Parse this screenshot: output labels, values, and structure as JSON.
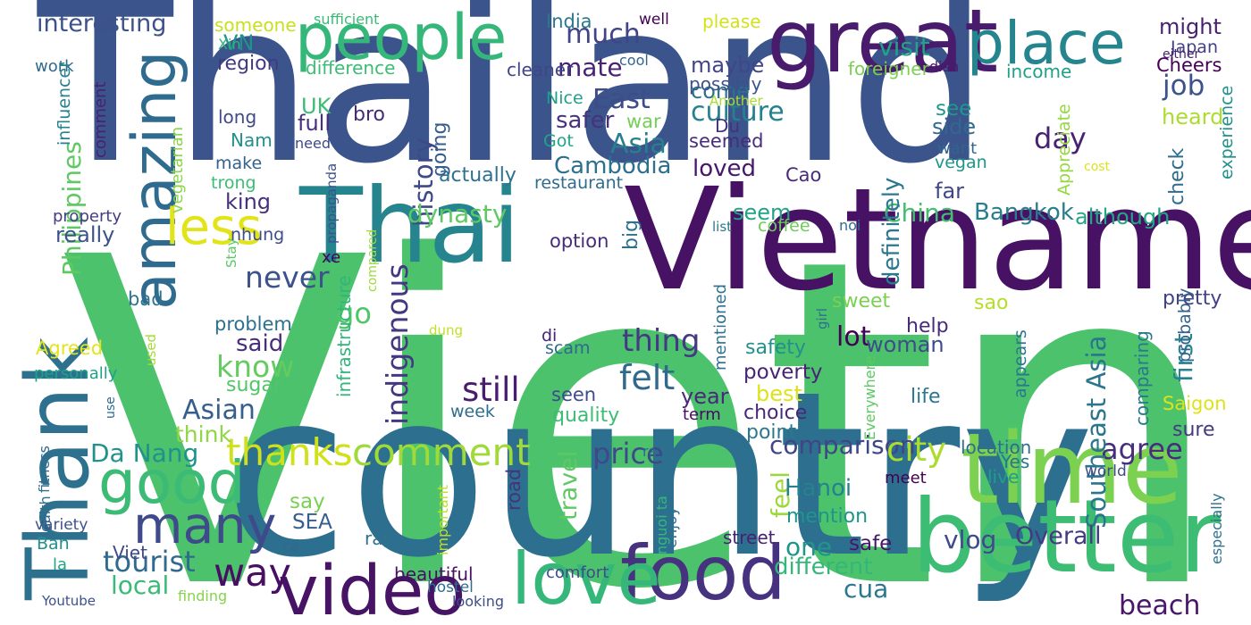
{
  "words": [
    {
      "text": "Vietnam",
      "color": "#4cc26c",
      "rotated": false
    },
    {
      "text": "Thailand",
      "color": "#3b548c",
      "rotated": false
    },
    {
      "text": "country",
      "color": "#2d6f8e",
      "rotated": false
    },
    {
      "text": "Vietnamese",
      "color": "#471164",
      "rotated": false
    },
    {
      "text": "Thai",
      "color": "#25848e",
      "rotated": false
    },
    {
      "text": "great",
      "color": "#481b6d",
      "rotated": false
    },
    {
      "text": "time",
      "color": "#7cd250",
      "rotated": false
    },
    {
      "text": "better",
      "color": "#3dbc74",
      "rotated": false
    },
    {
      "text": "Thank",
      "color": "#2d718e",
      "rotated": true
    },
    {
      "text": "food",
      "color": "#46327e",
      "rotated": false
    },
    {
      "text": "love",
      "color": "#35b779",
      "rotated": false
    },
    {
      "text": "video",
      "color": "#471365",
      "rotated": false
    },
    {
      "text": "people",
      "color": "#35b779",
      "rotated": false
    },
    {
      "text": "place",
      "color": "#25858e",
      "rotated": false
    },
    {
      "text": "amazing",
      "color": "#2f6b8e",
      "rotated": true
    },
    {
      "text": "good",
      "color": "#3bbb75",
      "rotated": false
    },
    {
      "text": "many",
      "color": "#3e4a89",
      "rotated": false
    },
    {
      "text": "less",
      "color": "#e1e419",
      "rotated": false
    },
    {
      "text": "thanks",
      "color": "#d0e11c",
      "rotated": false
    },
    {
      "text": "comment",
      "color": "#a0da39",
      "rotated": false
    },
    {
      "text": "way",
      "color": "#470e61",
      "rotated": false
    },
    {
      "text": "tourist",
      "color": "#306a8e",
      "rotated": false
    },
    {
      "text": "local",
      "color": "#3aba76",
      "rotated": false
    },
    {
      "text": "job",
      "color": "#3b528b",
      "rotated": false
    },
    {
      "text": "culture",
      "color": "#26818e",
      "rotated": false
    },
    {
      "text": "history",
      "color": "#3e4989",
      "rotated": true
    },
    {
      "text": "Asia",
      "color": "#27808e",
      "rotated": false
    },
    {
      "text": "much",
      "color": "#414487",
      "rotated": false
    },
    {
      "text": "East",
      "color": "#3e4c8a",
      "rotated": false
    },
    {
      "text": "Cambodia",
      "color": "#2d708e",
      "rotated": false
    },
    {
      "text": "safer",
      "color": "#46337f",
      "rotated": false
    },
    {
      "text": "mate",
      "color": "#482374",
      "rotated": false
    },
    {
      "text": "visit",
      "color": "#20a386",
      "rotated": false
    },
    {
      "text": "day",
      "color": "#482173",
      "rotated": false
    },
    {
      "text": "dynasty",
      "color": "#5ec962",
      "rotated": false
    },
    {
      "text": "China",
      "color": "#44bf70",
      "rotated": false
    },
    {
      "text": "Bangkok",
      "color": "#287d8e",
      "rotated": false
    },
    {
      "text": "never",
      "color": "#3b528b",
      "rotated": false
    },
    {
      "text": "go",
      "color": "#52c569",
      "rotated": false
    },
    {
      "text": "said",
      "color": "#472d7b",
      "rotated": false
    },
    {
      "text": "know",
      "color": "#63cb5f",
      "rotated": false
    },
    {
      "text": "indigenous",
      "color": "#453781",
      "rotated": true
    },
    {
      "text": "still",
      "color": "#481c6e",
      "rotated": false
    },
    {
      "text": "thing",
      "color": "#443983",
      "rotated": false
    },
    {
      "text": "felt",
      "color": "#31688e",
      "rotated": false
    },
    {
      "text": "Asian",
      "color": "#355f8d",
      "rotated": false
    },
    {
      "text": "Da Nang",
      "color": "#20928c",
      "rotated": false
    },
    {
      "text": "price",
      "color": "#3f4889",
      "rotated": false
    },
    {
      "text": "travel",
      "color": "#5ec962",
      "rotated": true
    },
    {
      "text": "feel",
      "color": "#9bd93c",
      "rotated": true
    },
    {
      "text": "comparison",
      "color": "#404588",
      "rotated": false
    },
    {
      "text": "city",
      "color": "#addc30",
      "rotated": false
    },
    {
      "text": "agree",
      "color": "#472e7c",
      "rotated": false
    },
    {
      "text": "Southeast Asia",
      "color": "#2a768e",
      "rotated": true
    },
    {
      "text": "one",
      "color": "#1f968b",
      "rotated": false
    },
    {
      "text": "different",
      "color": "#35b779",
      "rotated": false
    },
    {
      "text": "cua",
      "color": "#2a788e",
      "rotated": false
    },
    {
      "text": "beach",
      "color": "#481769",
      "rotated": false
    },
    {
      "text": "vlog",
      "color": "#3e4a89",
      "rotated": false
    },
    {
      "text": "Overall",
      "color": "#443a83",
      "rotated": false
    },
    {
      "text": "first",
      "color": "#26828e",
      "rotated": true
    },
    {
      "text": "lot",
      "color": "#440154",
      "rotated": false
    },
    {
      "text": "interesting",
      "color": "#3b528b",
      "rotated": false
    },
    {
      "text": "Philippines",
      "color": "#5ec962",
      "rotated": true
    },
    {
      "text": "really",
      "color": "#3b528b",
      "rotated": false
    },
    {
      "text": "king",
      "color": "#46307e",
      "rotated": false
    },
    {
      "text": "see",
      "color": "#1f988b",
      "rotated": false
    },
    {
      "text": "side",
      "color": "#31688e",
      "rotated": false
    },
    {
      "text": "far",
      "color": "#3f4788",
      "rotated": false
    },
    {
      "text": "definitely",
      "color": "#2a778e",
      "rotated": true
    },
    {
      "text": "seem",
      "color": "#20a386",
      "rotated": false
    },
    {
      "text": "loved",
      "color": "#48186a",
      "rotated": false
    },
    {
      "text": "come",
      "color": "#2c718e",
      "rotated": false
    },
    {
      "text": "maybe",
      "color": "#404688",
      "rotated": false
    },
    {
      "text": "might",
      "color": "#482173",
      "rotated": false
    },
    {
      "text": "Japan",
      "color": "#424186",
      "rotated": false
    },
    {
      "text": "Cheers",
      "color": "#440154",
      "rotated": false
    },
    {
      "text": "heard",
      "color": "#addc30",
      "rotated": false
    },
    {
      "text": "check",
      "color": "#2e6d8e",
      "rotated": true
    },
    {
      "text": "although",
      "color": "#22a785",
      "rotated": false
    },
    {
      "text": "woman",
      "color": "#3e4c8a",
      "rotated": false
    },
    {
      "text": "year",
      "color": "#482979",
      "rotated": false
    },
    {
      "text": "best",
      "color": "#dde318",
      "rotated": false
    },
    {
      "text": "safety",
      "color": "#21918c",
      "rotated": false
    },
    {
      "text": "poverty",
      "color": "#482475",
      "rotated": false
    },
    {
      "text": "choice",
      "color": "#482878",
      "rotated": false
    },
    {
      "text": "point",
      "color": "#2a788e",
      "rotated": false
    },
    {
      "text": "life",
      "color": "#2a768e",
      "rotated": false
    },
    {
      "text": "help",
      "color": "#472a7a",
      "rotated": false
    },
    {
      "text": "sweet",
      "color": "#7ad151",
      "rotated": false
    },
    {
      "text": "pretty",
      "color": "#424086",
      "rotated": false
    },
    {
      "text": "sao",
      "color": "#b5de2b",
      "rotated": false
    },
    {
      "text": "probably",
      "color": "#34618d",
      "rotated": true
    },
    {
      "text": "Saigon",
      "color": "#dde318",
      "rotated": false
    },
    {
      "text": "sure",
      "color": "#443983",
      "rotated": false
    },
    {
      "text": "location",
      "color": "#2f6c8e",
      "rotated": false
    },
    {
      "text": "Yes",
      "color": "#2a768e",
      "rotated": false
    },
    {
      "text": "live",
      "color": "#1f9e89",
      "rotated": false
    },
    {
      "text": "Hanoi",
      "color": "#26828e",
      "rotated": false
    },
    {
      "text": "mention",
      "color": "#1f968b",
      "rotated": false
    },
    {
      "text": "safe",
      "color": "#481668",
      "rotated": false
    },
    {
      "text": "road",
      "color": "#46337f",
      "rotated": true
    },
    {
      "text": "SEA",
      "color": "#355e8d",
      "rotated": false
    },
    {
      "text": "say",
      "color": "#7ad151",
      "rotated": false
    },
    {
      "text": "think",
      "color": "#8fd744",
      "rotated": false
    },
    {
      "text": "sugar",
      "color": "#52c569",
      "rotated": false
    },
    {
      "text": "problem",
      "color": "#2d708e",
      "rotated": false
    },
    {
      "text": "bad",
      "color": "#2c738e",
      "rotated": false
    },
    {
      "text": "quality",
      "color": "#3dbc74",
      "rotated": false
    },
    {
      "text": "week",
      "color": "#2e6e8e",
      "rotated": false
    },
    {
      "text": "seen",
      "color": "#3e4c8a",
      "rotated": false
    },
    {
      "text": "scam",
      "color": "#31688e",
      "rotated": false
    },
    {
      "text": "di",
      "color": "#482475",
      "rotated": false
    },
    {
      "text": "term",
      "color": "#460b5e",
      "rotated": false
    },
    {
      "text": "region",
      "color": "#453882",
      "rotated": false
    },
    {
      "text": "VN",
      "color": "#21918c",
      "rotated": false
    },
    {
      "text": "work",
      "color": "#30698e",
      "rotated": false
    },
    {
      "text": "UK",
      "color": "#3dbc74",
      "rotated": false
    },
    {
      "text": "long",
      "color": "#3e4a89",
      "rotated": false
    },
    {
      "text": "Nam",
      "color": "#21918c",
      "rotated": false
    },
    {
      "text": "make",
      "color": "#33638d",
      "rotated": false
    },
    {
      "text": "trong",
      "color": "#3dbc74",
      "rotated": false
    },
    {
      "text": "full",
      "color": "#472f7d",
      "rotated": false
    },
    {
      "text": "bro",
      "color": "#472a7a",
      "rotated": false
    },
    {
      "text": "cleaner",
      "color": "#404588",
      "rotated": false
    },
    {
      "text": "Nice",
      "color": "#1fa188",
      "rotated": false
    },
    {
      "text": "war",
      "color": "#73d055",
      "rotated": false
    },
    {
      "text": "going",
      "color": "#365c8d",
      "rotated": true
    },
    {
      "text": "Got",
      "color": "#20a486",
      "rotated": false
    },
    {
      "text": "actually",
      "color": "#2d718e",
      "rotated": false
    },
    {
      "text": "restaurant",
      "color": "#2f6b8e",
      "rotated": false
    },
    {
      "text": "big",
      "color": "#2d708e",
      "rotated": true
    },
    {
      "text": "option",
      "color": "#472c7a",
      "rotated": false
    },
    {
      "text": "seemed",
      "color": "#472d7b",
      "rotated": false
    },
    {
      "text": "possibly",
      "color": "#3b528b",
      "rotated": false
    },
    {
      "text": "Du",
      "color": "#46307e",
      "rotated": false
    },
    {
      "text": "Cao",
      "color": "#472c7a",
      "rotated": false
    },
    {
      "text": "want",
      "color": "#32648e",
      "rotated": false
    },
    {
      "text": "vegan",
      "color": "#1f968b",
      "rotated": false
    },
    {
      "text": "experience",
      "color": "#21918c",
      "rotated": true
    },
    {
      "text": "Appreciate",
      "color": "#95d840",
      "rotated": true
    },
    {
      "text": "income",
      "color": "#1fa188",
      "rotated": false
    },
    {
      "text": "foreigner",
      "color": "#7ad151",
      "rotated": false
    },
    {
      "text": "dish",
      "color": "#481b6d",
      "rotated": false
    },
    {
      "text": "either",
      "color": "#482071",
      "rotated": false
    },
    {
      "text": "cost",
      "color": "#dde318",
      "rotated": false
    },
    {
      "text": "someone",
      "color": "#c8e020",
      "rotated": false
    },
    {
      "text": "India",
      "color": "#2a788e",
      "rotated": false
    },
    {
      "text": "well",
      "color": "#440154",
      "rotated": false
    },
    {
      "text": "please",
      "color": "#d2e21b",
      "rotated": false
    },
    {
      "text": "sufficient",
      "color": "#3aba76",
      "rotated": false
    },
    {
      "text": "Xin",
      "color": "#2fb47c",
      "rotated": false
    },
    {
      "text": "difference",
      "color": "#3dbc74",
      "rotated": false
    },
    {
      "text": "cool",
      "color": "#32648e",
      "rotated": false
    },
    {
      "text": "Another",
      "color": "#aadc32",
      "rotated": false
    },
    {
      "text": "influencer",
      "color": "#26828e",
      "rotated": true
    },
    {
      "text": "comment",
      "color": "#482173",
      "rotated": true
    },
    {
      "text": "vegetarian",
      "color": "#8bd646",
      "rotated": true
    },
    {
      "text": "need",
      "color": "#3e4989",
      "rotated": false
    },
    {
      "text": "propaganda",
      "color": "#3b528b",
      "rotated": true
    },
    {
      "text": "property",
      "color": "#433d84",
      "rotated": false
    },
    {
      "text": "list",
      "color": "#2a788e",
      "rotated": false
    },
    {
      "text": "coffee",
      "color": "#6ccd5a",
      "rotated": false
    },
    {
      "text": "noi",
      "color": "#2e6f8e",
      "rotated": false
    },
    {
      "text": "nhung",
      "color": "#3e4c8a",
      "rotated": false
    },
    {
      "text": "xe",
      "color": "#450559",
      "rotated": false
    },
    {
      "text": "compared",
      "color": "#9fda3a",
      "rotated": true
    },
    {
      "text": "girl",
      "color": "#2d708e",
      "rotated": true
    },
    {
      "text": "Stay",
      "color": "#58c765",
      "rotated": true
    },
    {
      "text": "personally",
      "color": "#1fa188",
      "rotated": false
    },
    {
      "text": "Agreed",
      "color": "#e5e419",
      "rotated": false
    },
    {
      "text": "infrastructure",
      "color": "#31b57b",
      "rotated": true
    },
    {
      "text": "mentioned",
      "color": "#2c728e",
      "rotated": true
    },
    {
      "text": "appears",
      "color": "#2a778e",
      "rotated": true
    },
    {
      "text": "comparing",
      "color": "#2a788e",
      "rotated": true
    },
    {
      "text": "dung",
      "color": "#c2df23",
      "rotated": false
    },
    {
      "text": "used",
      "color": "#a5db36",
      "rotated": true
    },
    {
      "text": "Everywhere",
      "color": "#5cc863",
      "rotated": true
    },
    {
      "text": "especially",
      "color": "#2c728e",
      "rotated": true
    },
    {
      "text": "world",
      "color": "#3d4d8a",
      "rotated": false
    },
    {
      "text": "meet",
      "color": "#440154",
      "rotated": false
    },
    {
      "text": "health",
      "color": "#2f6c8e",
      "rotated": true
    },
    {
      "text": "fitness",
      "color": "#2f6c8e",
      "rotated": true
    },
    {
      "text": "use",
      "color": "#2f6b8e",
      "rotated": true
    },
    {
      "text": "variety",
      "color": "#3b528b",
      "rotated": false
    },
    {
      "text": "ca",
      "color": "#31688e",
      "rotated": false
    },
    {
      "text": "Ban",
      "color": "#20928c",
      "rotated": false
    },
    {
      "text": "Viet",
      "color": "#3e4a89",
      "rotated": false
    },
    {
      "text": "la",
      "color": "#22a785",
      "rotated": false
    },
    {
      "text": "important",
      "color": "#c2df23",
      "rotated": true
    },
    {
      "text": "rac",
      "color": "#2d718e",
      "rotated": false
    },
    {
      "text": "ra",
      "color": "#31688e",
      "rotated": false
    },
    {
      "text": "enjoy",
      "color": "#2d718e",
      "rotated": true
    },
    {
      "text": "nguoi ta",
      "color": "#35b779",
      "rotated": true
    },
    {
      "text": "street",
      "color": "#482173",
      "rotated": false
    },
    {
      "text": "beautiful",
      "color": "#471063",
      "rotated": false
    },
    {
      "text": "comfort",
      "color": "#3e4a89",
      "rotated": false
    },
    {
      "text": "hostel",
      "color": "#2e6e8e",
      "rotated": false
    },
    {
      "text": "looking",
      "color": "#3c4f8a",
      "rotated": false
    },
    {
      "text": "finding",
      "color": "#84d44b",
      "rotated": false
    },
    {
      "text": "Youtube",
      "color": "#3b528b",
      "rotated": false
    }
  ]
}
